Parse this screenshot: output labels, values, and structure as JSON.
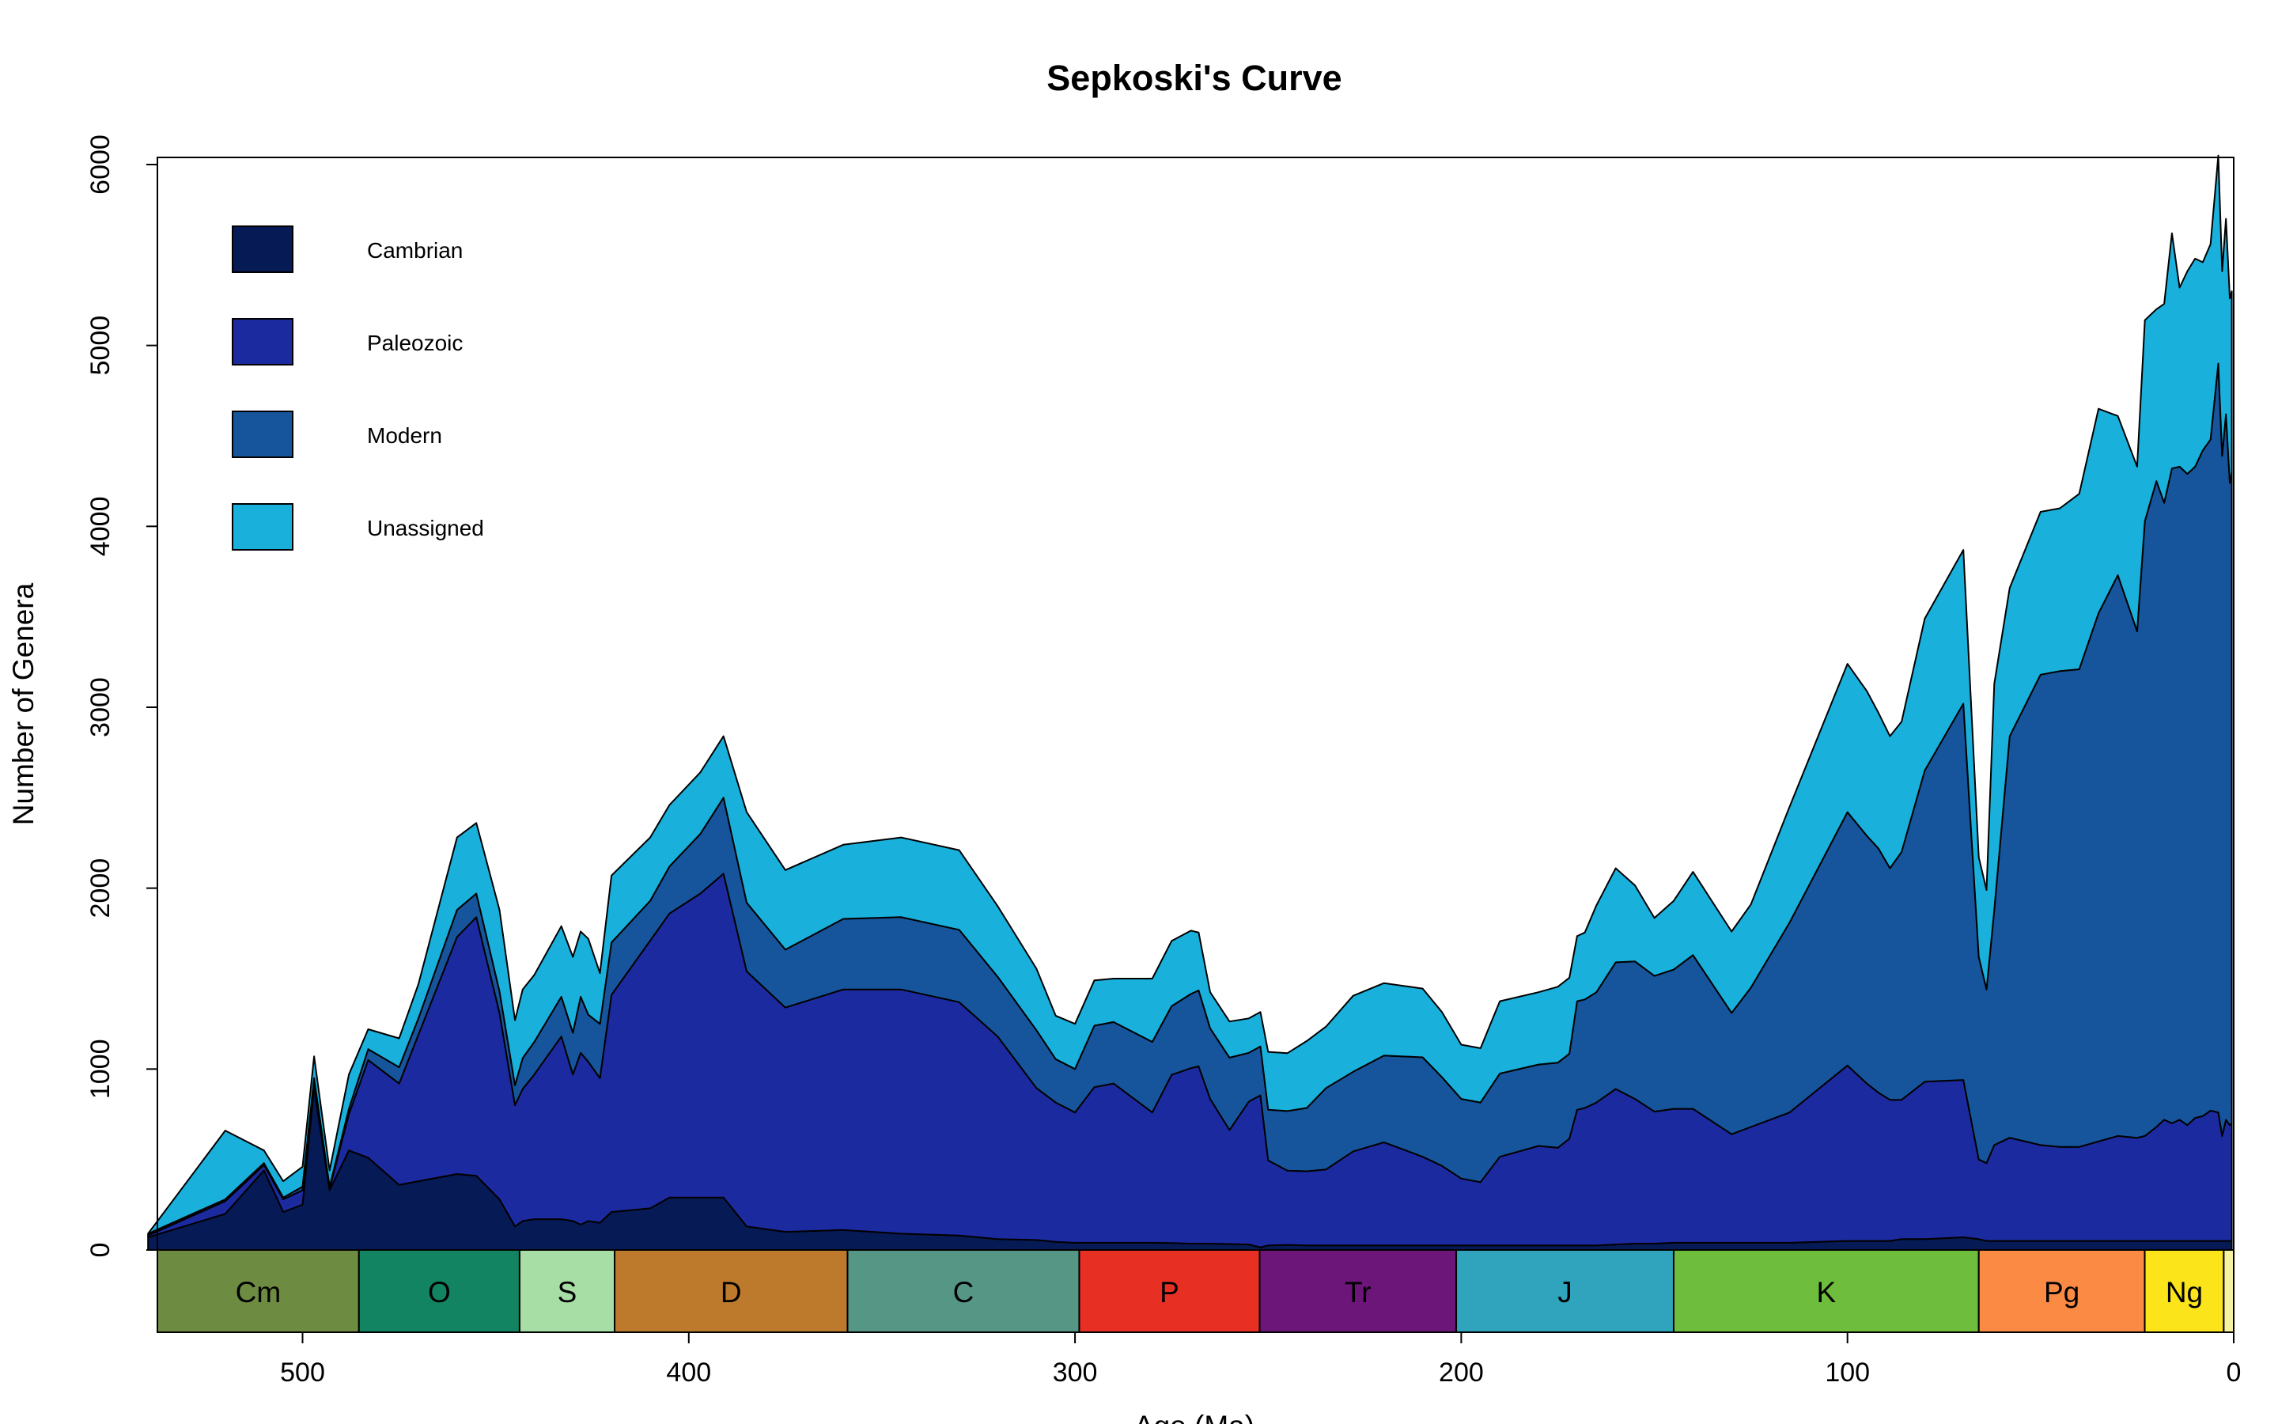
{
  "chart_data": {
    "type": "area",
    "title": "Sepkoski's Curve",
    "xlabel": "Age (Ma)",
    "ylabel": "Number of Genera",
    "xlim": [
      540,
      0
    ],
    "ylim": [
      0,
      6000
    ],
    "x_ticks": [
      500,
      400,
      300,
      200,
      100,
      0
    ],
    "y_ticks": [
      0,
      1000,
      2000,
      3000,
      4000,
      5000,
      6000
    ],
    "stacked": true,
    "grid": false,
    "legend_position": "top-left",
    "x": [
      540,
      520,
      510,
      505,
      500,
      497,
      493,
      488,
      483,
      475,
      470,
      460,
      455,
      449,
      445,
      443,
      440,
      433,
      430,
      428,
      426,
      423,
      420,
      410,
      405,
      397,
      391,
      385,
      375,
      360,
      345,
      330,
      320,
      310,
      305,
      300,
      295,
      290,
      280,
      275,
      270,
      268,
      265,
      260,
      255,
      252,
      250,
      245,
      240,
      235,
      228,
      220,
      210,
      205,
      200,
      195,
      190,
      180,
      175,
      172,
      170,
      168,
      165,
      160,
      155,
      150,
      145,
      140,
      130,
      125,
      115,
      100,
      95,
      92,
      89,
      86,
      80,
      70,
      66,
      64,
      62,
      58,
      50,
      45,
      40,
      35,
      30,
      25,
      23,
      20,
      18,
      16,
      14,
      12,
      10,
      8,
      6,
      4,
      3,
      2,
      1,
      0.5
    ],
    "series": [
      {
        "name": "Cambrian",
        "color": "#061a56",
        "values": [
          70,
          200,
          440,
          210,
          250,
          900,
          330,
          550,
          510,
          360,
          380,
          420,
          410,
          280,
          130,
          160,
          170,
          170,
          160,
          140,
          160,
          150,
          210,
          230,
          290,
          290,
          290,
          130,
          100,
          110,
          90,
          80,
          60,
          55,
          45,
          40,
          40,
          40,
          40,
          38,
          35,
          35,
          35,
          33,
          30,
          15,
          25,
          28,
          25,
          25,
          25,
          25,
          25,
          25,
          25,
          25,
          25,
          25,
          25,
          25,
          25,
          25,
          25,
          30,
          35,
          35,
          40,
          40,
          40,
          40,
          40,
          50,
          50,
          50,
          50,
          60,
          60,
          70,
          60,
          50,
          50,
          50,
          50,
          50,
          50,
          50,
          50,
          50,
          50,
          50,
          50,
          50,
          50,
          50,
          50,
          50,
          50,
          50,
          50,
          50,
          50,
          50
        ]
      },
      {
        "name": "Paleozoic",
        "color": "#1c2aa0",
        "values": [
          10,
          70,
          30,
          70,
          80,
          30,
          10,
          200,
          540,
          560,
          810,
          1310,
          1430,
          1030,
          670,
          730,
          800,
          1010,
          810,
          950,
          880,
          800,
          1200,
          1480,
          1570,
          1680,
          1790,
          1410,
          1240,
          1330,
          1350,
          1290,
          1120,
          840,
          770,
          720,
          860,
          880,
          720,
          930,
          970,
          980,
          800,
          630,
          790,
          840,
          470,
          410,
          410,
          420,
          520,
          570,
          490,
          440,
          370,
          350,
          490,
          550,
          540,
          590,
          750,
          760,
          790,
          860,
          800,
          730,
          740,
          740,
          600,
          640,
          720,
          970,
          870,
          820,
          780,
          770,
          870,
          870,
          440,
          430,
          530,
          570,
          530,
          520,
          520,
          550,
          580,
          570,
          580,
          630,
          670,
          650,
          670,
          640,
          680,
          690,
          720,
          710,
          580,
          670,
          640,
          650
        ]
      },
      {
        "name": "Modern",
        "color": "#16559c",
        "values": [
          10,
          10,
          10,
          10,
          20,
          20,
          10,
          30,
          60,
          90,
          90,
          150,
          130,
          120,
          110,
          170,
          180,
          220,
          230,
          310,
          260,
          300,
          290,
          220,
          260,
          330,
          420,
          380,
          320,
          390,
          400,
          400,
          330,
          320,
          240,
          240,
          340,
          340,
          390,
          380,
          410,
          420,
          390,
          400,
          270,
          270,
          280,
          330,
          350,
          450,
          440,
          480,
          550,
          490,
          440,
          440,
          460,
          450,
          470,
          470,
          600,
          600,
          610,
          700,
          760,
          750,
          770,
          850,
          670,
          770,
          1050,
          1400,
          1370,
          1350,
          1280,
          1370,
          1720,
          2080,
          1120,
          960,
          1300,
          2220,
          2600,
          2630,
          2640,
          2920,
          3100,
          2800,
          3400,
          3570,
          3410,
          3620,
          3610,
          3600,
          3600,
          3680,
          3710,
          4140,
          3760,
          3900,
          3550,
          3600
        ]
      },
      {
        "name": "Unassigned",
        "color": "#1ab0dc",
        "values": [
          0,
          380,
          70,
          90,
          110,
          120,
          90,
          190,
          110,
          160,
          190,
          400,
          390,
          450,
          360,
          380,
          370,
          390,
          420,
          360,
          420,
          280,
          370,
          350,
          340,
          340,
          340,
          500,
          440,
          410,
          440,
          440,
          390,
          340,
          240,
          250,
          250,
          240,
          350,
          360,
          350,
          320,
          200,
          200,
          190,
          190,
          320,
          320,
          370,
          340,
          420,
          400,
          380,
          360,
          300,
          300,
          400,
          400,
          420,
          420,
          360,
          370,
          480,
          520,
          420,
          320,
          380,
          460,
          450,
          460,
          640,
          820,
          800,
          750,
          730,
          720,
          840,
          850,
          550,
          550,
          1250,
          820,
          900,
          900,
          970,
          1130,
          880,
          910,
          1110,
          950,
          1100,
          1300,
          990,
          1120,
          1150,
          1040,
          1080,
          1150,
          1020,
          1080,
          1020,
          1000
        ]
      }
    ],
    "periods": [
      {
        "label": "Cm",
        "start": 541,
        "end": 485.4,
        "color": "#6e8b42"
      },
      {
        "label": "O",
        "start": 485.4,
        "end": 443.8,
        "color": "#138462"
      },
      {
        "label": "S",
        "start": 443.8,
        "end": 419.2,
        "color": "#a6dea6"
      },
      {
        "label": "D",
        "start": 419.2,
        "end": 358.9,
        "color": "#bd7a2c"
      },
      {
        "label": "C",
        "start": 358.9,
        "end": 298.9,
        "color": "#569685"
      },
      {
        "label": "P",
        "start": 298.9,
        "end": 252.2,
        "color": "#e82f24"
      },
      {
        "label": "Tr",
        "start": 252.2,
        "end": 201.3,
        "color": "#6d167a"
      },
      {
        "label": "J",
        "start": 201.3,
        "end": 145.0,
        "color": "#30a3bd"
      },
      {
        "label": "K",
        "start": 145.0,
        "end": 66.0,
        "color": "#6fbd3c"
      },
      {
        "label": "Pg",
        "start": 66.0,
        "end": 23.03,
        "color": "#fb8a45"
      },
      {
        "label": "Ng",
        "start": 23.03,
        "end": 2.58,
        "color": "#fce41a"
      },
      {
        "label": "",
        "start": 2.58,
        "end": 0,
        "color": "#f7f2a2"
      }
    ]
  }
}
